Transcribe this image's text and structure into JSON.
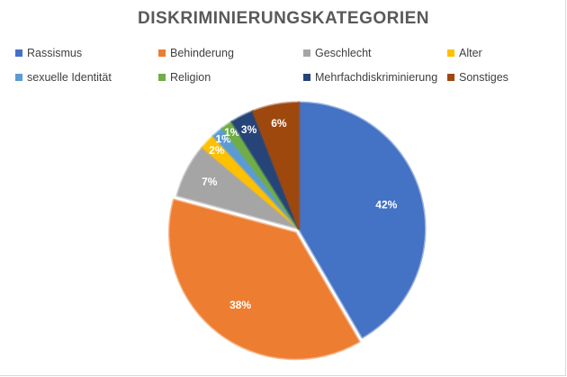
{
  "chart_data": {
    "type": "pie",
    "title": "DISKRIMINIERUNGSKATEGORIEN",
    "legend_position": "top",
    "series": [
      {
        "name": "Rassismus",
        "value": 42,
        "label": "42%",
        "color": "#4472C4"
      },
      {
        "name": "Behinderung",
        "value": 38,
        "label": "38%",
        "color": "#ED7D31"
      },
      {
        "name": "Geschlecht",
        "value": 7,
        "label": "7%",
        "color": "#A5A5A5"
      },
      {
        "name": "Alter",
        "value": 2,
        "label": "2%",
        "color": "#FFC000"
      },
      {
        "name": "sexuelle Identität",
        "value": 1.5,
        "label": "1%",
        "color": "#5B9BD5"
      },
      {
        "name": "Religion",
        "value": 1.5,
        "label": "1%",
        "color": "#70AD47"
      },
      {
        "name": "Mehrfachdiskriminierung",
        "value": 3,
        "label": "3%",
        "color": "#264478"
      },
      {
        "name": "Sonstiges",
        "value": 6,
        "label": "6%",
        "color": "#9E480E"
      }
    ]
  }
}
